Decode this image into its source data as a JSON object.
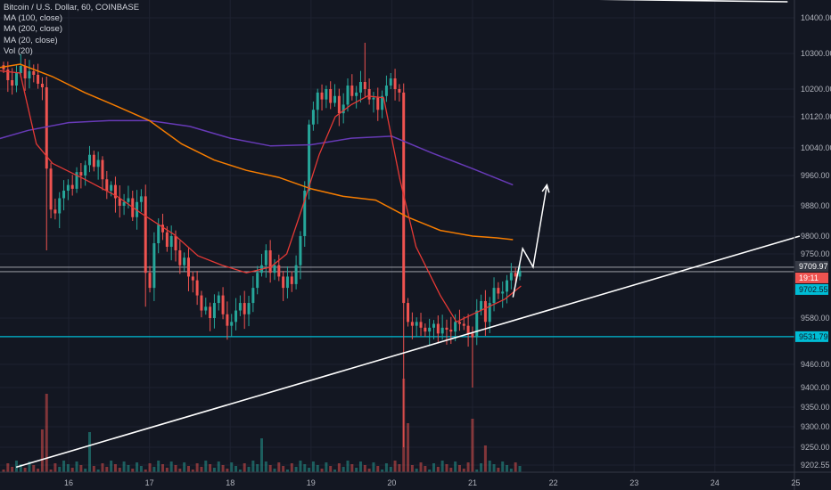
{
  "legend": {
    "symbol_line": "Bitcoin / U.S. Dollar, 60, COINBASE",
    "ma100": "MA (100, close)",
    "ma200": "MA (200, close)",
    "ma20": "MA (20, close)",
    "vol": "Vol (20)"
  },
  "price_tags": {
    "current": "9709.97",
    "countdown": "19:11",
    "ma_value": "9702.55",
    "support": "9531.79"
  },
  "colors": {
    "background": "#131722",
    "up": "#26a69a",
    "down": "#ef5350",
    "ma100": "#f57c00",
    "ma200": "#673ab7",
    "ma20": "#e53935",
    "support_line": "#00bcd4",
    "drawing": "#ffffff"
  },
  "chart_data": {
    "type": "candlestick",
    "symbol": "Bitcoin / U.S. Dollar, 60, COINBASE",
    "y_ticks": [
      10400,
      10300,
      10200,
      10120,
      10040,
      9960,
      9880,
      9800,
      9750,
      9580,
      9460,
      9400,
      9350,
      9300,
      9250,
      9202.55
    ],
    "x_ticks": [
      "16",
      "17",
      "18",
      "19",
      "20",
      "21",
      "22",
      "23",
      "24",
      "25"
    ],
    "ylim": [
      9195,
      10450
    ],
    "grid": true,
    "legend_position": "top-left",
    "horizontal_lines": [
      9531.79,
      9709.97
    ],
    "candles_close": [
      10255,
      10225,
      10210,
      10245,
      10265,
      10230,
      10250,
      10240,
      10215,
      10205,
      9980,
      9870,
      9860,
      9900,
      9920,
      9935,
      9925,
      9970,
      9960,
      9990,
      10020,
      9985,
      10005,
      9950,
      9920,
      9935,
      9900,
      9880,
      9890,
      9900,
      9850,
      9890,
      9905,
      9700,
      9660,
      9780,
      9830,
      9810,
      9770,
      9800,
      9760,
      9720,
      9740,
      9690,
      9680,
      9640,
      9600,
      9610,
      9580,
      9620,
      9640,
      9590,
      9560,
      9570,
      9600,
      9620,
      9590,
      9620,
      9660,
      9700,
      9720,
      9760,
      9700,
      9720,
      9690,
      9660,
      9690,
      9670,
      9720,
      9800,
      9920,
      10100,
      10140,
      10190,
      10170,
      10200,
      10160,
      10180,
      10130,
      10155,
      10210,
      10180,
      10190,
      10220,
      10200,
      10170,
      10175,
      10140,
      10180,
      10210,
      10230,
      10200,
      10190,
      9620,
      9570,
      9560,
      9570,
      9555,
      9545,
      9555,
      9565,
      9540,
      9555,
      9550,
      9545,
      9570,
      9565,
      9560,
      9540,
      9530,
      9600,
      9625,
      9570,
      9620,
      9660,
      9645,
      9650,
      9680,
      9700,
      9690,
      9705
    ],
    "ma200_points": [
      [
        15.0,
        10055
      ],
      [
        15.5,
        10085
      ],
      [
        16.0,
        10105
      ],
      [
        16.5,
        10110
      ],
      [
        17.0,
        10110
      ],
      [
        17.5,
        10095
      ],
      [
        18.0,
        10065
      ],
      [
        18.5,
        10045
      ],
      [
        19.0,
        10048
      ],
      [
        19.5,
        10065
      ],
      [
        20.0,
        10070
      ],
      [
        20.5,
        10025
      ],
      [
        21.0,
        9980
      ],
      [
        21.5,
        9935
      ]
    ],
    "ma100_points": [
      [
        15.0,
        10255
      ],
      [
        15.4,
        10270
      ],
      [
        15.8,
        10235
      ],
      [
        16.2,
        10190
      ],
      [
        16.6,
        10150
      ],
      [
        17.0,
        10110
      ],
      [
        17.4,
        10050
      ],
      [
        17.8,
        10005
      ],
      [
        18.2,
        9975
      ],
      [
        18.6,
        9955
      ],
      [
        19.0,
        9925
      ],
      [
        19.4,
        9905
      ],
      [
        19.8,
        9895
      ],
      [
        20.2,
        9850
      ],
      [
        20.6,
        9815
      ],
      [
        21.0,
        9800
      ],
      [
        21.3,
        9795
      ],
      [
        21.5,
        9790
      ]
    ],
    "ma20_points": [
      [
        15.0,
        10255
      ],
      [
        15.4,
        10245
      ],
      [
        15.6,
        10050
      ],
      [
        15.8,
        9995
      ],
      [
        16.2,
        9950
      ],
      [
        16.6,
        9905
      ],
      [
        16.9,
        9860
      ],
      [
        17.3,
        9805
      ],
      [
        17.6,
        9745
      ],
      [
        17.9,
        9720
      ],
      [
        18.2,
        9700
      ],
      [
        18.5,
        9715
      ],
      [
        18.7,
        9750
      ],
      [
        18.9,
        9880
      ],
      [
        19.1,
        10020
      ],
      [
        19.3,
        10120
      ],
      [
        19.5,
        10155
      ],
      [
        19.7,
        10180
      ],
      [
        19.9,
        10175
      ],
      [
        20.1,
        9950
      ],
      [
        20.3,
        9770
      ],
      [
        20.6,
        9640
      ],
      [
        20.8,
        9570
      ],
      [
        21.0,
        9590
      ],
      [
        21.2,
        9610
      ],
      [
        21.4,
        9630
      ],
      [
        21.6,
        9665
      ]
    ],
    "trendline": [
      [
        15.35,
        9198
      ],
      [
        25.05,
        9800
      ]
    ],
    "upper_line": [
      [
        19.9,
        10460
      ],
      [
        24.9,
        10445
      ]
    ],
    "forecast_path": [
      [
        21.5,
        9635
      ],
      [
        21.62,
        9765
      ],
      [
        21.75,
        9715
      ],
      [
        21.92,
        9935
      ]
    ]
  }
}
